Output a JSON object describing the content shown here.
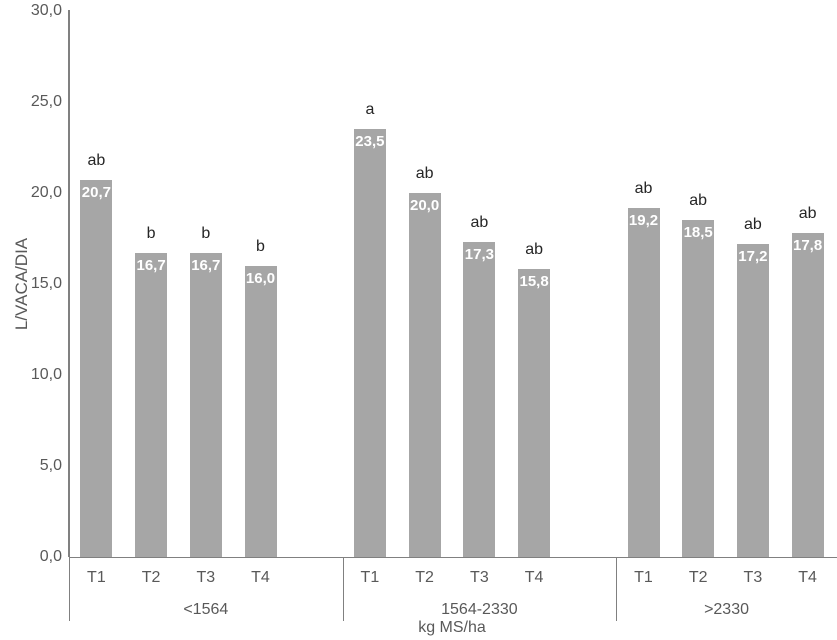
{
  "chart_data": {
    "type": "bar",
    "title": "",
    "ylabel": "L/VACA/DIA",
    "xlabel": "kg MS/ha",
    "ylim": [
      0,
      30
    ],
    "grid": false,
    "legend_position": "none",
    "yticks": [
      {
        "value": 0,
        "label": "0,0"
      },
      {
        "value": 5,
        "label": "5,0"
      },
      {
        "value": 10,
        "label": "10,0"
      },
      {
        "value": 15,
        "label": "15,0"
      },
      {
        "value": 20,
        "label": "20,0"
      },
      {
        "value": 25,
        "label": "25,0"
      },
      {
        "value": 30,
        "label": "30,0"
      }
    ],
    "categories": [
      "T1",
      "T2",
      "T3",
      "T4"
    ],
    "groups": [
      {
        "label": "<1564",
        "bars": [
          {
            "category": "T1",
            "value": 20.7,
            "value_label": "20,7",
            "significance": "ab"
          },
          {
            "category": "T2",
            "value": 16.7,
            "value_label": "16,7",
            "significance": "b"
          },
          {
            "category": "T3",
            "value": 16.7,
            "value_label": "16,7",
            "significance": "b"
          },
          {
            "category": "T4",
            "value": 16.0,
            "value_label": "16,0",
            "significance": "b"
          }
        ]
      },
      {
        "label": "1564-2330",
        "bars": [
          {
            "category": "T1",
            "value": 23.5,
            "value_label": "23,5",
            "significance": "a"
          },
          {
            "category": "T2",
            "value": 20.0,
            "value_label": "20,0",
            "significance": "ab"
          },
          {
            "category": "T3",
            "value": 17.3,
            "value_label": "17,3",
            "significance": "ab"
          },
          {
            "category": "T4",
            "value": 15.8,
            "value_label": "15,8",
            "significance": "ab"
          }
        ]
      },
      {
        "label": ">2330",
        "bars": [
          {
            "category": "T1",
            "value": 19.2,
            "value_label": "19,2",
            "significance": "ab"
          },
          {
            "category": "T2",
            "value": 18.5,
            "value_label": "18,5",
            "significance": "ab"
          },
          {
            "category": "T3",
            "value": 17.2,
            "value_label": "17,2",
            "significance": "ab"
          },
          {
            "category": "T4",
            "value": 17.8,
            "value_label": "17,8",
            "significance": "ab"
          }
        ]
      }
    ],
    "colors": {
      "bar": "#a6a6a6",
      "axis_line": "#808080",
      "axis_text": "#595959",
      "value_label": "#ffffff",
      "significance_label": "#262626"
    }
  }
}
